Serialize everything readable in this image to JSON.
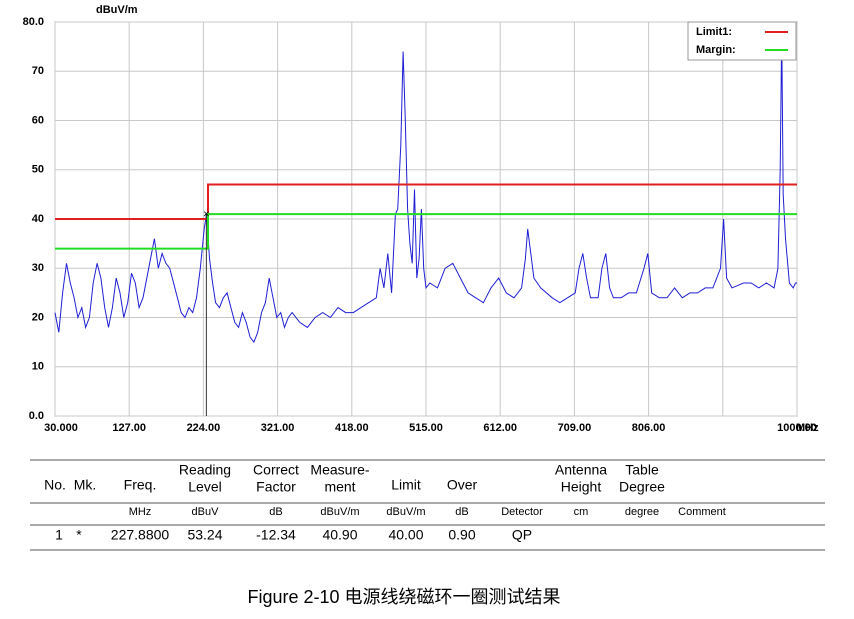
{
  "chart_data": {
    "type": "line",
    "y_unit": "dBuV/m",
    "x_unit": "MHz",
    "xlim": [
      30,
      1000
    ],
    "ylim": [
      0,
      80
    ],
    "xticks": [
      {
        "value": 30,
        "label": "30.000"
      },
      {
        "value": 127,
        "label": "127.00"
      },
      {
        "value": 224,
        "label": "224.00"
      },
      {
        "value": 321,
        "label": "321.00"
      },
      {
        "value": 418,
        "label": "418.00"
      },
      {
        "value": 515,
        "label": "515.00"
      },
      {
        "value": 612,
        "label": "612.00"
      },
      {
        "value": 709,
        "label": "709.00"
      },
      {
        "value": 806,
        "label": "806.00"
      },
      {
        "value": 903,
        "label": null
      },
      {
        "value": 1000,
        "label": "1000.00"
      }
    ],
    "yticks": [
      {
        "value": 0,
        "label": "0.0"
      },
      10,
      20,
      30,
      40,
      50,
      60,
      70,
      {
        "value": 80,
        "label": "80.0"
      }
    ],
    "grid": true,
    "legend": "top-right",
    "series": [
      {
        "color": "#1f1fd6",
        "x": [
          30,
          35,
          40,
          45,
          50,
          55,
          60,
          65,
          70,
          75,
          80,
          85,
          90,
          95,
          100,
          105,
          110,
          115,
          120,
          125,
          130,
          135,
          140,
          145,
          150,
          155,
          160,
          165,
          170,
          175,
          180,
          185,
          190,
          195,
          200,
          205,
          210,
          215,
          220,
          225,
          228,
          232,
          236,
          240,
          245,
          250,
          255,
          260,
          265,
          270,
          275,
          280,
          285,
          290,
          295,
          300,
          305,
          310,
          315,
          320,
          325,
          330,
          335,
          340,
          350,
          360,
          370,
          380,
          390,
          400,
          410,
          420,
          430,
          440,
          450,
          455,
          460,
          465,
          470,
          475,
          478,
          482,
          485,
          488,
          491,
          494,
          497,
          500,
          503,
          506,
          509,
          512,
          515,
          520,
          530,
          540,
          550,
          560,
          570,
          580,
          590,
          600,
          610,
          620,
          630,
          640,
          645,
          648,
          652,
          656,
          665,
          680,
          690,
          700,
          710,
          715,
          720,
          725,
          730,
          740,
          745,
          750,
          755,
          760,
          770,
          780,
          790,
          800,
          805,
          810,
          820,
          830,
          840,
          850,
          860,
          870,
          880,
          890,
          900,
          904,
          908,
          915,
          930,
          940,
          950,
          960,
          970,
          975,
          978,
          980,
          982,
          985,
          990,
          995,
          998,
          1000
        ],
        "values": [
          21,
          17,
          25,
          31,
          27,
          24,
          20,
          22,
          18,
          20,
          27,
          31,
          28,
          22,
          18,
          22,
          28,
          25,
          20,
          23,
          29,
          27,
          22,
          24,
          28,
          32,
          36,
          30,
          33,
          31,
          30,
          27,
          24,
          21,
          20,
          22,
          21,
          24,
          30,
          38,
          41,
          32,
          27,
          23,
          22,
          24,
          25,
          22,
          19,
          18,
          21,
          19,
          16,
          15,
          17,
          21,
          23,
          28,
          24,
          20,
          21,
          18,
          20,
          21,
          19,
          18,
          20,
          21,
          20,
          22,
          21,
          21,
          22,
          23,
          24,
          30,
          26,
          33,
          25,
          41,
          42,
          55,
          74,
          60,
          42,
          35,
          31,
          46,
          28,
          32,
          42,
          30,
          26,
          27,
          26,
          30,
          31,
          28,
          25,
          24,
          23,
          26,
          28,
          25,
          24,
          26,
          32,
          38,
          33,
          28,
          26,
          24,
          23,
          24,
          25,
          30,
          33,
          28,
          24,
          24,
          30,
          33,
          26,
          24,
          24,
          25,
          25,
          30,
          33,
          25,
          24,
          24,
          26,
          24,
          25,
          25,
          26,
          26,
          30,
          40,
          28,
          26,
          27,
          27,
          26,
          27,
          26,
          30,
          50,
          78,
          45,
          36,
          27,
          26,
          27,
          27
        ]
      },
      {
        "name": "Limit1:",
        "color": "#e02020",
        "x": [
          30,
          230,
          230,
          1000
        ],
        "values": [
          40,
          40,
          47,
          47
        ]
      },
      {
        "name": "Margin:",
        "color": "#22dd22",
        "x": [
          30,
          230,
          230,
          1000
        ],
        "values": [
          34,
          34,
          41,
          41
        ]
      }
    ],
    "marker": {
      "x": 227.88,
      "y": 40.9
    }
  },
  "table": {
    "header": [
      [
        "No."
      ],
      [
        "Mk."
      ],
      [
        "Freq."
      ],
      [
        "Reading",
        "Level"
      ],
      [
        "Correct",
        "Factor"
      ],
      [
        "Measure-",
        "ment"
      ],
      [
        "Limit"
      ],
      [
        "Over"
      ],
      null,
      [
        "Antenna",
        "Height"
      ],
      [
        "Table",
        "Degree"
      ],
      null
    ],
    "units": [
      null,
      null,
      "MHz",
      "dBuV",
      "dB",
      "dBuV/m",
      "dBuV/m",
      "dB",
      "Detector",
      "cm",
      "degree",
      "Comment"
    ],
    "rows": [
      [
        "1",
        "*",
        "227.8800",
        "53.24",
        "-12.34",
        "40.90",
        "40.00",
        "0.90",
        "QP",
        null,
        null,
        null
      ]
    ]
  },
  "caption": "Figure 2-10  电源线绕磁环一圈测试结果"
}
